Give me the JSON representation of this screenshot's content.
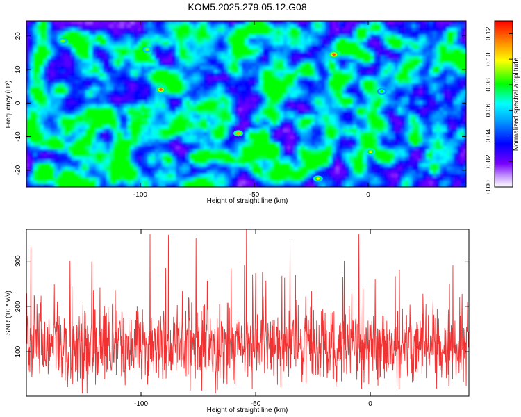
{
  "title": "KOM5.2025.279.05.12.G08",
  "colors": {
    "line": "#f03232",
    "axis": "#000000",
    "background": "#ffffff"
  },
  "chart_data": [
    {
      "type": "heatmap",
      "xlabel": "Height of straight line (km)",
      "ylabel": "Frequency (Hz)",
      "xlim": [
        -150,
        43
      ],
      "ylim": [
        -25,
        24.5
      ],
      "x_ticks": [
        -100,
        -50,
        0
      ],
      "x_tick_labels": [
        "-100",
        "-50",
        "0"
      ],
      "y_ticks": [
        20,
        10,
        0,
        -10,
        -20
      ],
      "y_tick_labels": [
        "20",
        "10",
        "0",
        "-10",
        "-20"
      ],
      "colorbar": {
        "label": "Normalized spectral amplitude",
        "range": [
          0,
          0.13
        ],
        "ticks": [
          0.0,
          0.02,
          0.04,
          0.06,
          0.08,
          0.1,
          0.12
        ],
        "tick_labels": [
          "0.00",
          "0.02",
          "0.04",
          "0.06",
          "0.08",
          "0.10",
          "0.12"
        ]
      },
      "data_description": "Dense speckled noise field; mostly 0.02-0.05, scattered blobs to 0.08, few peaks near 0.11-0.12",
      "peaks": [
        {
          "x": -91,
          "y": 4,
          "value": 0.12
        },
        {
          "x": -15,
          "y": 14.5,
          "value": 0.12
        },
        {
          "x": -57,
          "y": -9,
          "value": 0.11
        },
        {
          "x": 1,
          "y": -14.5,
          "value": 0.1
        },
        {
          "x": -134,
          "y": 18.5,
          "value": 0.09
        },
        {
          "x": -22,
          "y": -22.5,
          "value": 0.1
        },
        {
          "x": -97,
          "y": 16,
          "value": 0.09
        },
        {
          "x": 6,
          "y": 3.5,
          "value": 0.08
        }
      ]
    },
    {
      "type": "line",
      "xlabel": "Height of straight line (km)",
      "ylabel": "SNR (10 * v/v)",
      "xlim": [
        -150,
        43
      ],
      "ylim": [
        2,
        370
      ],
      "x_ticks": [
        -100,
        -50,
        0
      ],
      "x_tick_labels": [
        "-100",
        "-50",
        "0"
      ],
      "y_ticks": [
        100,
        200,
        300
      ],
      "y_tick_labels": [
        "100",
        "200",
        "300"
      ],
      "n_points": 1300,
      "series": [
        {
          "name": "SNR",
          "color": "#f03232",
          "mean": 110,
          "typical_range": [
            40,
            200
          ],
          "spikes": [
            {
              "x": -148,
              "y": 330
            },
            {
              "x": -131,
              "y": 300
            },
            {
              "x": -96,
              "y": 360
            },
            {
              "x": -88,
              "y": 358
            },
            {
              "x": -76,
              "y": 350
            },
            {
              "x": -54,
              "y": 370
            },
            {
              "x": -35,
              "y": 345
            },
            {
              "x": -5,
              "y": 360
            },
            {
              "x": 36,
              "y": 290
            }
          ]
        }
      ]
    }
  ]
}
